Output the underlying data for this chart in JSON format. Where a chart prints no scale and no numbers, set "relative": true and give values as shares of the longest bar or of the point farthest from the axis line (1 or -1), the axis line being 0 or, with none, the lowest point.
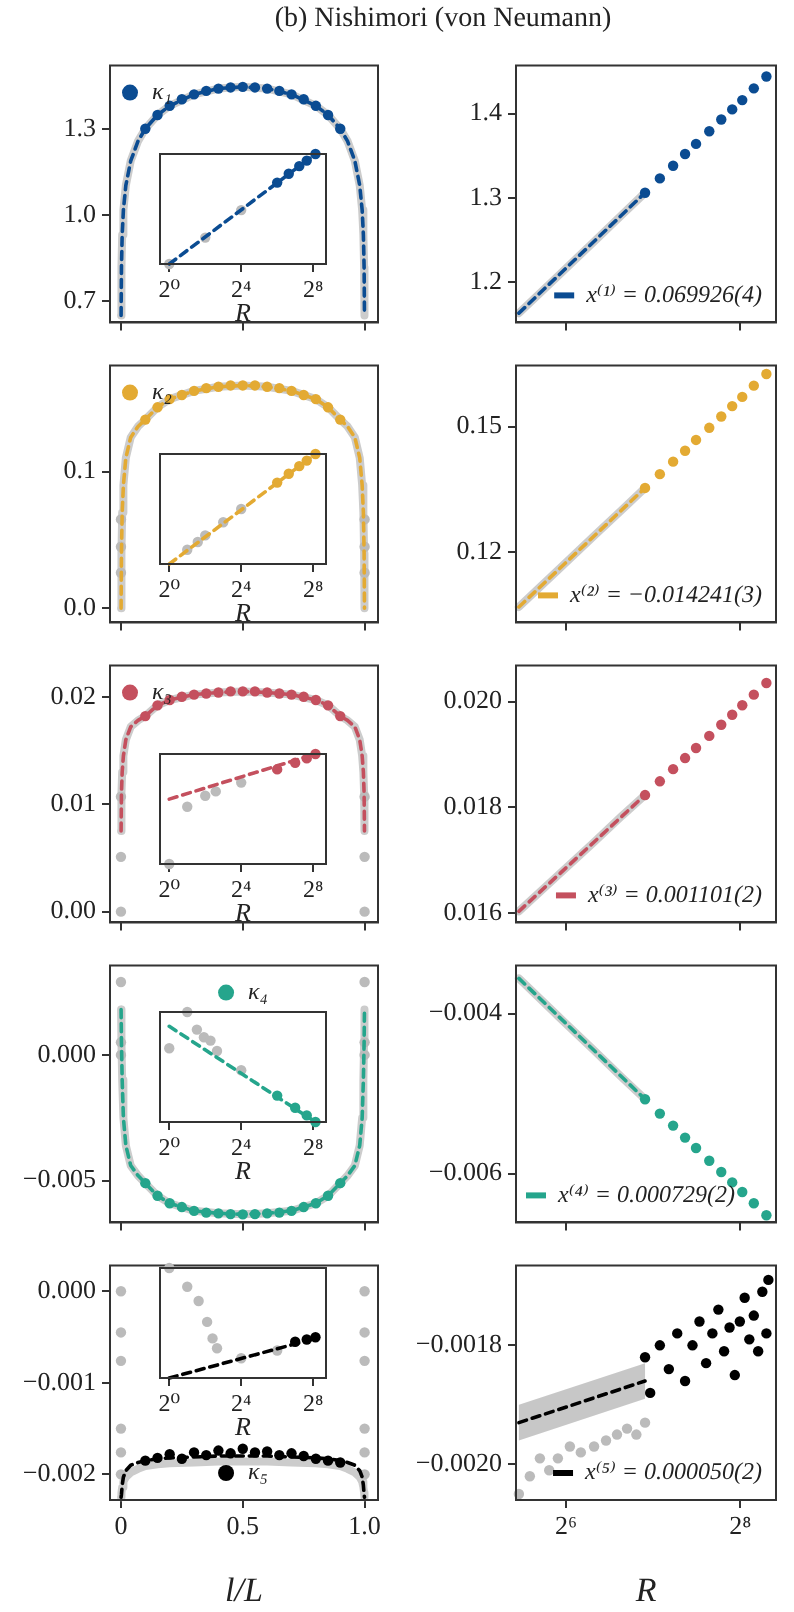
{
  "chart_data": [
    {
      "type": "scatter",
      "title": "(b) Nishimori (von Neumann)",
      "xlim": [
        -0.045,
        1.055
      ],
      "xticks": [
        {
          "value": 0,
          "label": null
        },
        {
          "value": 0.5,
          "label": null
        },
        {
          "value": 1,
          "label": null
        }
      ],
      "ylim": [
        0.626,
        1.52
      ],
      "yticks": [
        {
          "value": 0.7,
          "label": "0.7"
        },
        {
          "value": 1,
          "label": "1.0"
        },
        {
          "value": 1.3,
          "label": "1.3"
        }
      ],
      "tick_labels": "y",
      "legend": "top left",
      "series": [
        {
          "type": "line",
          "color": "#cccccc",
          "line_style": "solid",
          "x": [
            0.0005,
            0.002,
            0.005,
            0.01,
            0.02,
            0.04,
            0.07,
            0.1,
            0.15,
            0.2,
            0.3,
            0.4,
            0.5,
            0.6,
            0.7,
            0.8,
            0.85,
            0.9,
            0.93,
            0.96,
            0.98,
            0.99,
            0.995,
            0.998,
            0.9995
          ],
          "values": [
            0.65,
            0.817,
            0.931,
            1.017,
            1.103,
            1.188,
            1.257,
            1.3,
            1.348,
            1.38,
            1.42,
            1.44,
            1.446,
            1.44,
            1.42,
            1.38,
            1.348,
            1.3,
            1.257,
            1.188,
            1.103,
            1.017,
            0.931,
            0.817,
            0.65
          ]
        },
        {
          "type": "line",
          "color": "#0b4c92",
          "line_style": "dashed",
          "x": [
            0.0005,
            0.002,
            0.005,
            0.01,
            0.02,
            0.04,
            0.07,
            0.1,
            0.15,
            0.2,
            0.3,
            0.4,
            0.5,
            0.6,
            0.7,
            0.8,
            0.85,
            0.9,
            0.93,
            0.96,
            0.98,
            0.99,
            0.995,
            0.998,
            0.9995
          ],
          "values": [
            0.65,
            0.817,
            0.931,
            1.017,
            1.103,
            1.188,
            1.257,
            1.3,
            1.348,
            1.38,
            1.42,
            1.44,
            1.446,
            1.44,
            1.42,
            1.38,
            1.348,
            1.3,
            1.257,
            1.188,
            1.103,
            1.017,
            0.931,
            0.817,
            0.65
          ]
        },
        {
          "type": "scatter",
          "marker": "circle",
          "name": "κ₁",
          "color": "#0b4c92",
          "x": [
            0.1,
            0.15,
            0.2,
            0.25,
            0.3,
            0.35,
            0.4,
            0.45,
            0.5,
            0.55,
            0.6,
            0.65,
            0.7,
            0.75,
            0.8,
            0.85,
            0.9
          ],
          "values": [
            1.3,
            1.348,
            1.38,
            1.403,
            1.42,
            1.432,
            1.44,
            1.444,
            1.446,
            1.444,
            1.44,
            1.432,
            1.42,
            1.403,
            1.38,
            1.348,
            1.3
          ]
        }
      ]
    },
    {
      "type": "scatter",
      "relative": true,
      "log": "x",
      "xlabel": "R",
      "xlim": [
        0.72,
        420
      ],
      "xticks": [
        {
          "value": 1,
          "label": "2⁰"
        },
        {
          "value": 16,
          "label": "2⁴"
        },
        {
          "value": 256,
          "label": "2⁸"
        }
      ],
      "series": [
        {
          "type": "scatter",
          "marker": "circle",
          "color": "#bbbbbb",
          "x": [
            1,
            4,
            16
          ],
          "values": [
            0,
            0.24,
            0.49
          ]
        },
        {
          "type": "line",
          "color": "#0b4c92",
          "line_style": "dashed",
          "x": [
            1,
            280
          ],
          "values": [
            0,
            1
          ]
        },
        {
          "type": "scatter",
          "marker": "circle",
          "color": "#0b4c92",
          "x": [
            64,
            100,
            150,
            200,
            280
          ],
          "values": [
            0.74,
            0.82,
            0.89,
            0.94,
            1
          ]
        }
      ]
    },
    {
      "type": "scatter",
      "log": "x",
      "xlim": [
        43,
        340
      ],
      "xticks": [
        {
          "value": 64,
          "label": null
        },
        {
          "value": 256,
          "label": null
        }
      ],
      "ylim": [
        1.152,
        1.457
      ],
      "yticks": [
        {
          "value": 1.2,
          "label": "1.2"
        },
        {
          "value": 1.3,
          "label": "1.3"
        },
        {
          "value": 1.4,
          "label": "1.4"
        }
      ],
      "tick_labels": "y",
      "legend": "bottom right",
      "series": [
        {
          "type": "line",
          "color": "#cccccc",
          "line_style": "solid",
          "x": [
            44,
            60,
            80,
            100,
            120
          ],
          "values": [
            1.163,
            1.207,
            1.248,
            1.28,
            1.306
          ]
        },
        {
          "type": "line",
          "name": "x⁽¹⁾ = 0.069926(4)",
          "color": "#0b4c92",
          "line_style": "dashed",
          "x": [
            44,
            120
          ],
          "values": [
            1.163,
            1.306
          ]
        },
        {
          "type": "scatter",
          "marker": "circle",
          "color": "#0b4c92",
          "x": [
            120,
            135,
            150,
            165,
            180,
            200,
            220,
            240,
            260,
            285,
            315
          ],
          "values": [
            1.306,
            1.323,
            1.338,
            1.352,
            1.364,
            1.379,
            1.393,
            1.405,
            1.416,
            1.43,
            1.444
          ]
        }
      ]
    },
    {
      "type": "scatter",
      "xlim": [
        -0.045,
        1.055
      ],
      "xticks": [
        {
          "value": 0,
          "label": null
        },
        {
          "value": 0.5,
          "label": null
        },
        {
          "value": 1,
          "label": null
        }
      ],
      "ylim": [
        -0.0103,
        0.1775
      ],
      "yticks": [
        {
          "value": 0,
          "label": "0.0"
        },
        {
          "value": 0.1,
          "label": "0.1"
        }
      ],
      "tick_labels": "y",
      "legend": "top left",
      "series": [
        {
          "type": "line",
          "color": "#cccccc",
          "line_style": "solid",
          "x": [
            0.0005,
            0.002,
            0.005,
            0.01,
            0.02,
            0.04,
            0.07,
            0.1,
            0.15,
            0.2,
            0.3,
            0.4,
            0.5,
            0.6,
            0.7,
            0.8,
            0.85,
            0.9,
            0.93,
            0.96,
            0.98,
            0.99,
            0.995,
            0.998,
            0.9995
          ],
          "values": [
            0,
            0.04,
            0.07,
            0.09,
            0.11,
            0.125,
            0.133,
            0.138,
            0.147,
            0.153,
            0.159,
            0.162,
            0.163,
            0.162,
            0.159,
            0.153,
            0.147,
            0.138,
            0.133,
            0.125,
            0.11,
            0.09,
            0.07,
            0.04,
            0
          ]
        },
        {
          "type": "scatter",
          "marker": "circle",
          "color": "#bbbbbb",
          "x": [
            0,
            0,
            0,
            1,
            1,
            1
          ],
          "values": [
            0.065,
            0.045,
            0.026,
            0.065,
            0.045,
            0.026
          ]
        },
        {
          "type": "line",
          "color": "#e3aa33",
          "line_style": "dashed",
          "x": [
            0.0005,
            0.002,
            0.005,
            0.01,
            0.02,
            0.04,
            0.07,
            0.1,
            0.15,
            0.2,
            0.3,
            0.4,
            0.5,
            0.6,
            0.7,
            0.8,
            0.85,
            0.9,
            0.93,
            0.96,
            0.98,
            0.99,
            0.995,
            0.998,
            0.9995
          ],
          "values": [
            0,
            0.04,
            0.07,
            0.09,
            0.11,
            0.125,
            0.133,
            0.138,
            0.147,
            0.153,
            0.159,
            0.162,
            0.163,
            0.162,
            0.159,
            0.153,
            0.147,
            0.138,
            0.133,
            0.125,
            0.11,
            0.09,
            0.07,
            0.04,
            0
          ]
        },
        {
          "type": "scatter",
          "marker": "circle",
          "name": "κ₂",
          "color": "#e3aa33",
          "x": [
            0.1,
            0.15,
            0.2,
            0.25,
            0.3,
            0.35,
            0.4,
            0.45,
            0.5,
            0.55,
            0.6,
            0.65,
            0.7,
            0.75,
            0.8,
            0.85,
            0.9
          ],
          "values": [
            0.138,
            0.147,
            0.153,
            0.156,
            0.159,
            0.161,
            0.162,
            0.163,
            0.163,
            0.163,
            0.162,
            0.161,
            0.159,
            0.156,
            0.153,
            0.147,
            0.138
          ]
        }
      ]
    },
    {
      "type": "scatter",
      "relative": true,
      "log": "x",
      "xlabel": "R",
      "xlim": [
        0.72,
        420
      ],
      "xticks": [
        {
          "value": 1,
          "label": "2⁰"
        },
        {
          "value": 16,
          "label": "2⁴"
        },
        {
          "value": 256,
          "label": "2⁸"
        }
      ],
      "series": [
        {
          "type": "scatter",
          "marker": "circle",
          "color": "#bbbbbb",
          "x": [
            2,
            3,
            4,
            8,
            16
          ],
          "values": [
            0.13,
            0.2,
            0.26,
            0.38,
            0.5
          ]
        },
        {
          "type": "line",
          "color": "#e3aa33",
          "line_style": "dashed",
          "x": [
            1,
            280
          ],
          "values": [
            0,
            1
          ]
        },
        {
          "type": "scatter",
          "marker": "circle",
          "color": "#e3aa33",
          "x": [
            64,
            100,
            150,
            200,
            280
          ],
          "values": [
            0.74,
            0.82,
            0.89,
            0.94,
            1
          ]
        }
      ]
    },
    {
      "type": "scatter",
      "log": "x",
      "xlim": [
        43,
        340
      ],
      "xticks": [
        {
          "value": 64,
          "label": null
        },
        {
          "value": 256,
          "label": null
        }
      ],
      "ylim": [
        0.1031,
        0.1646
      ],
      "yticks": [
        {
          "value": 0.12,
          "label": "0.12"
        },
        {
          "value": 0.15,
          "label": "0.15"
        }
      ],
      "tick_labels": "y",
      "legend": "bottom right",
      "series": [
        {
          "type": "line",
          "color": "#cccccc",
          "line_style": "solid",
          "x": [
            44,
            60,
            80,
            100,
            120
          ],
          "values": [
            0.1068,
            0.1156,
            0.1238,
            0.1301,
            0.1353
          ]
        },
        {
          "type": "line",
          "name": "x⁽²⁾ = −0.014241(3)",
          "color": "#e3aa33",
          "line_style": "dashed",
          "x": [
            44,
            120
          ],
          "values": [
            0.1068,
            0.1353
          ]
        },
        {
          "type": "scatter",
          "marker": "circle",
          "color": "#e3aa33",
          "x": [
            120,
            135,
            150,
            165,
            180,
            200,
            220,
            240,
            260,
            285,
            315
          ],
          "values": [
            0.1353,
            0.1386,
            0.1416,
            0.1442,
            0.1468,
            0.1497,
            0.1524,
            0.1549,
            0.1571,
            0.1598,
            0.1626
          ]
        }
      ]
    },
    {
      "type": "scatter",
      "xlim": [
        -0.045,
        1.055
      ],
      "xticks": [
        {
          "value": 0,
          "label": null
        },
        {
          "value": 0.5,
          "label": null
        },
        {
          "value": 1,
          "label": null
        }
      ],
      "ylim": [
        -0.001,
        0.0229
      ],
      "yticks": [
        {
          "value": 0,
          "label": "0.00"
        },
        {
          "value": 0.01,
          "label": "0.01"
        },
        {
          "value": 0.02,
          "label": "0.02"
        }
      ],
      "tick_labels": "y",
      "legend": "top left",
      "series": [
        {
          "type": "line",
          "color": "#cccccc",
          "line_style": "solid",
          "x": [
            0.0005,
            0.002,
            0.005,
            0.01,
            0.02,
            0.04,
            0.07,
            0.1,
            0.15,
            0.2,
            0.3,
            0.4,
            0.5,
            0.6,
            0.7,
            0.8,
            0.85,
            0.9,
            0.93,
            0.96,
            0.98,
            0.99,
            0.995,
            0.998,
            0.9995
          ],
          "values": [
            0.0075,
            0.011,
            0.013,
            0.0145,
            0.016,
            0.0172,
            0.0178,
            0.0182,
            0.0192,
            0.0197,
            0.0202,
            0.0204,
            0.0205,
            0.0204,
            0.0202,
            0.0197,
            0.0192,
            0.0182,
            0.0178,
            0.0172,
            0.016,
            0.0145,
            0.013,
            0.011,
            0.0075
          ]
        },
        {
          "type": "scatter",
          "marker": "circle",
          "color": "#bbbbbb",
          "x": [
            0,
            0,
            0,
            1,
            1,
            1
          ],
          "values": [
            0.0107,
            0.0051,
            0,
            0.0107,
            0.0051,
            0
          ]
        },
        {
          "type": "line",
          "color": "#c4505e",
          "line_style": "dashed",
          "x": [
            0.0005,
            0.002,
            0.005,
            0.01,
            0.02,
            0.04,
            0.07,
            0.1,
            0.15,
            0.2,
            0.3,
            0.4,
            0.5,
            0.6,
            0.7,
            0.8,
            0.85,
            0.9,
            0.93,
            0.96,
            0.98,
            0.99,
            0.995,
            0.998,
            0.9995
          ],
          "values": [
            0.0075,
            0.011,
            0.013,
            0.0145,
            0.016,
            0.0172,
            0.0178,
            0.0182,
            0.0192,
            0.0197,
            0.0202,
            0.0204,
            0.0205,
            0.0204,
            0.0202,
            0.0197,
            0.0192,
            0.0182,
            0.0178,
            0.0172,
            0.016,
            0.0145,
            0.013,
            0.011,
            0.0075
          ]
        },
        {
          "type": "scatter",
          "marker": "circle",
          "name": "κ₃",
          "color": "#c4505e",
          "x": [
            0.1,
            0.15,
            0.2,
            0.25,
            0.3,
            0.35,
            0.4,
            0.45,
            0.5,
            0.55,
            0.6,
            0.65,
            0.7,
            0.75,
            0.8,
            0.85,
            0.9
          ],
          "values": [
            0.0182,
            0.0192,
            0.0197,
            0.02,
            0.0202,
            0.0203,
            0.0204,
            0.0205,
            0.0205,
            0.0205,
            0.0204,
            0.0203,
            0.0202,
            0.02,
            0.0197,
            0.0192,
            0.0182
          ]
        }
      ]
    },
    {
      "type": "scatter",
      "relative": true,
      "log": "x",
      "xlabel": "R",
      "xlim": [
        0.72,
        420
      ],
      "xticks": [
        {
          "value": 1,
          "label": "2⁰"
        },
        {
          "value": 16,
          "label": "2⁴"
        },
        {
          "value": 256,
          "label": "2⁸"
        }
      ],
      "series": [
        {
          "type": "scatter",
          "marker": "circle",
          "color": "#bbbbbb",
          "x": [
            1,
            2,
            4,
            6,
            16
          ],
          "values": [
            0,
            0.52,
            0.62,
            0.66,
            0.74
          ]
        },
        {
          "type": "line",
          "color": "#c4505e",
          "line_style": "dashed",
          "x": [
            1,
            280
          ],
          "values": [
            0.59,
            1
          ]
        },
        {
          "type": "scatter",
          "marker": "circle",
          "color": "#c4505e",
          "x": [
            64,
            128,
            200,
            280
          ],
          "values": [
            0.86,
            0.92,
            0.96,
            1
          ]
        }
      ]
    },
    {
      "type": "scatter",
      "log": "x",
      "xlim": [
        43,
        340
      ],
      "xticks": [
        {
          "value": 64,
          "label": null
        },
        {
          "value": 256,
          "label": null
        }
      ],
      "ylim": [
        0.01582,
        0.02068
      ],
      "yticks": [
        {
          "value": 0.016,
          "label": "0.016"
        },
        {
          "value": 0.018,
          "label": "0.018"
        },
        {
          "value": 0.02,
          "label": "0.020"
        }
      ],
      "tick_labels": "y",
      "legend": "bottom right",
      "series": [
        {
          "type": "line",
          "color": "#cccccc",
          "line_style": "solid",
          "x": [
            44,
            60,
            80,
            100,
            120
          ],
          "values": [
            0.01603,
            0.01671,
            0.01734,
            0.01784,
            0.01823
          ]
        },
        {
          "type": "line",
          "name": "x⁽³⁾ = 0.001101(2)",
          "color": "#c4505e",
          "line_style": "dashed",
          "x": [
            44,
            120
          ],
          "values": [
            0.01603,
            0.01823
          ]
        },
        {
          "type": "scatter",
          "marker": "circle",
          "color": "#c4505e",
          "x": [
            120,
            135,
            150,
            165,
            180,
            200,
            220,
            240,
            260,
            285,
            315
          ],
          "values": [
            0.01823,
            0.01849,
            0.01872,
            0.01893,
            0.01912,
            0.01935,
            0.01956,
            0.01975,
            0.01993,
            0.02013,
            0.02035
          ]
        }
      ]
    },
    {
      "type": "scatter",
      "xlim": [
        -0.045,
        1.055
      ],
      "xticks": [
        {
          "value": 0,
          "label": null
        },
        {
          "value": 0.5,
          "label": null
        },
        {
          "value": 1,
          "label": null
        }
      ],
      "ylim": [
        -0.00666,
        0.00355
      ],
      "yticks": [
        {
          "value": -0.005,
          "label": "−0.005"
        },
        {
          "value": 0,
          "label": "0.000"
        }
      ],
      "tick_labels": "y",
      "legend": "top",
      "series": [
        {
          "type": "line",
          "color": "#cccccc",
          "line_style": "solid",
          "x": [
            0.0005,
            0.002,
            0.005,
            0.01,
            0.02,
            0.04,
            0.07,
            0.1,
            0.15,
            0.2,
            0.3,
            0.4,
            0.5,
            0.6,
            0.7,
            0.8,
            0.85,
            0.9,
            0.93,
            0.96,
            0.98,
            0.99,
            0.995,
            0.998,
            0.9995
          ],
          "values": [
            0.0018,
            0.0005,
            -0.001,
            -0.0025,
            -0.0036,
            -0.0044,
            -0.0048,
            -0.0051,
            -0.0056,
            -0.0059,
            -0.0062,
            -0.0063,
            -0.00634,
            -0.0063,
            -0.0062,
            -0.0059,
            -0.0056,
            -0.0051,
            -0.0048,
            -0.0044,
            -0.0036,
            -0.0025,
            -0.001,
            0.0005,
            0.0018
          ]
        },
        {
          "type": "scatter",
          "marker": "circle",
          "color": "#bbbbbb",
          "x": [
            0,
            0,
            0,
            1,
            1,
            1
          ],
          "values": [
            0.0029,
            0.0005,
            0,
            0.0029,
            0.0005,
            0
          ]
        },
        {
          "type": "line",
          "color": "#25a58c",
          "line_style": "dashed",
          "x": [
            0.0005,
            0.002,
            0.005,
            0.01,
            0.02,
            0.04,
            0.07,
            0.1,
            0.15,
            0.2,
            0.3,
            0.4,
            0.5,
            0.6,
            0.7,
            0.8,
            0.85,
            0.9,
            0.93,
            0.96,
            0.98,
            0.99,
            0.995,
            0.998,
            0.9995
          ],
          "values": [
            0.0018,
            0.0005,
            -0.001,
            -0.0025,
            -0.0036,
            -0.0044,
            -0.0048,
            -0.0051,
            -0.0056,
            -0.0059,
            -0.0062,
            -0.0063,
            -0.00634,
            -0.0063,
            -0.0062,
            -0.0059,
            -0.0056,
            -0.0051,
            -0.0048,
            -0.0044,
            -0.0036,
            -0.0025,
            -0.001,
            0.0005,
            0.0018
          ]
        },
        {
          "type": "scatter",
          "marker": "circle",
          "name": "κ₄",
          "color": "#25a58c",
          "x": [
            0.1,
            0.15,
            0.2,
            0.25,
            0.3,
            0.35,
            0.4,
            0.45,
            0.5,
            0.55,
            0.6,
            0.65,
            0.7,
            0.75,
            0.8,
            0.85,
            0.9
          ],
          "values": [
            -0.0051,
            -0.0056,
            -0.0059,
            -0.00605,
            -0.0062,
            -0.00627,
            -0.0063,
            -0.00633,
            -0.00634,
            -0.00633,
            -0.0063,
            -0.00627,
            -0.0062,
            -0.00605,
            -0.0059,
            -0.0056,
            -0.0051
          ]
        }
      ]
    },
    {
      "type": "scatter",
      "relative": true,
      "log": "x",
      "xlabel": "R",
      "xlim": [
        0.72,
        420
      ],
      "xticks": [
        {
          "value": 1,
          "label": "2⁰"
        },
        {
          "value": 16,
          "label": "2⁴"
        },
        {
          "value": 256,
          "label": "2⁸"
        }
      ],
      "series": [
        {
          "type": "scatter",
          "marker": "circle",
          "color": "#bbbbbb",
          "x": [
            1,
            2,
            2.9,
            3.8,
            4.9,
            6.3,
            16
          ],
          "values": [
            0.67,
            1,
            0.84,
            0.77,
            0.74,
            0.645,
            0.47
          ]
        },
        {
          "type": "line",
          "color": "#25a58c",
          "line_style": "dashed",
          "x": [
            1,
            280
          ],
          "values": [
            0.87,
            0
          ]
        },
        {
          "type": "scatter",
          "marker": "circle",
          "color": "#25a58c",
          "x": [
            64,
            128,
            200,
            280
          ],
          "values": [
            0.24,
            0.13,
            0.06,
            0
          ]
        }
      ]
    },
    {
      "type": "scatter",
      "log": "x",
      "xlim": [
        43,
        340
      ],
      "xticks": [
        {
          "value": 64,
          "label": null
        },
        {
          "value": 256,
          "label": null
        }
      ],
      "ylim": [
        -0.00661,
        -0.0034
      ],
      "yticks": [
        {
          "value": -0.006,
          "label": "−0.006"
        },
        {
          "value": -0.004,
          "label": "−0.004"
        }
      ],
      "tick_labels": "y",
      "legend": "bottom left",
      "series": [
        {
          "type": "line",
          "color": "#cccccc",
          "line_style": "solid",
          "x": [
            44,
            60,
            80,
            100,
            120
          ],
          "values": [
            -0.00356,
            -0.00403,
            -0.00446,
            -0.0048,
            -0.00507
          ]
        },
        {
          "type": "line",
          "name": "x⁽⁴⁾ = 0.000729(2)",
          "color": "#25a58c",
          "line_style": "dashed",
          "x": [
            44,
            120
          ],
          "values": [
            -0.00356,
            -0.00507
          ]
        },
        {
          "type": "scatter",
          "marker": "circle",
          "color": "#25a58c",
          "x": [
            120,
            135,
            150,
            165,
            180,
            200,
            220,
            240,
            260,
            285,
            315
          ],
          "values": [
            -0.00507,
            -0.00525,
            -0.0054,
            -0.00555,
            -0.00568,
            -0.00584,
            -0.00598,
            -0.00611,
            -0.00623,
            -0.00637,
            -0.00652
          ]
        }
      ]
    },
    {
      "type": "scatter",
      "xlabel": "l/L",
      "xlim": [
        -0.045,
        1.055
      ],
      "xticks": [
        0,
        0.5,
        {
          "value": 1,
          "label": "1.0"
        }
      ],
      "ylim": [
        -0.00228,
        0.00028
      ],
      "yticks": [
        {
          "value": -0.002,
          "label": "−0.002"
        },
        {
          "value": -0.001,
          "label": "−0.001"
        },
        {
          "value": 0,
          "label": "0.000"
        }
      ],
      "legend": "bottom",
      "series": [
        {
          "type": "line",
          "color": "#cccccc",
          "line_style": "solid",
          "x": [
            0.0005,
            0.002,
            0.005,
            0.01,
            0.02,
            0.04,
            0.07,
            0.1,
            0.15,
            0.2,
            0.3,
            0.4,
            0.5,
            0.6,
            0.7,
            0.8,
            0.85,
            0.9,
            0.93,
            0.96,
            0.98,
            0.99,
            0.995,
            0.998,
            0.9995
          ],
          "values": [
            -0.00225,
            -0.0022,
            -0.00214,
            -0.00208,
            -0.00203,
            -0.00198,
            -0.00194,
            -0.00191,
            -0.00189,
            -0.00188,
            -0.00187,
            -0.00186,
            -0.00186,
            -0.00186,
            -0.00187,
            -0.00188,
            -0.00189,
            -0.00191,
            -0.00194,
            -0.00198,
            -0.00203,
            -0.00208,
            -0.00214,
            -0.0022,
            -0.00225
          ]
        },
        {
          "type": "scatter",
          "marker": "circle",
          "color": "#bbbbbb",
          "x": [
            0,
            0,
            0,
            0,
            0,
            0,
            1,
            1,
            1,
            1,
            1,
            1
          ],
          "values": [
            0,
            -0.00045,
            -0.00076,
            -0.0015,
            -0.00176,
            -0.002,
            0,
            -0.00045,
            -0.00076,
            -0.0015,
            -0.00176,
            -0.002
          ]
        },
        {
          "type": "line",
          "color": "#000000",
          "line_style": "dashed",
          "x": [
            0.0005,
            0.002,
            0.005,
            0.01,
            0.02,
            0.04,
            0.07,
            0.1,
            0.15,
            0.2,
            0.3,
            0.4,
            0.5,
            0.6,
            0.7,
            0.8,
            0.85,
            0.9,
            0.93,
            0.96,
            0.98,
            0.99,
            0.995,
            0.998,
            0.9995
          ],
          "values": [
            -0.00225,
            -0.00222,
            -0.00212,
            -0.00203,
            -0.00196,
            -0.0019,
            -0.00187,
            -0.00185,
            -0.00183,
            -0.00182,
            -0.00181,
            -0.0018,
            -0.0018,
            -0.0018,
            -0.00181,
            -0.00182,
            -0.00183,
            -0.00185,
            -0.00187,
            -0.0019,
            -0.00196,
            -0.00203,
            -0.00212,
            -0.00222,
            -0.00225
          ]
        },
        {
          "type": "scatter",
          "marker": "circle",
          "name": "κ₅",
          "color": "#000000",
          "x": [
            0.1,
            0.15,
            0.2,
            0.25,
            0.3,
            0.35,
            0.4,
            0.45,
            0.5,
            0.55,
            0.6,
            0.65,
            0.7,
            0.75,
            0.8,
            0.85,
            0.9
          ],
          "values": [
            -0.00185,
            -0.00182,
            -0.00178,
            -0.00183,
            -0.00176,
            -0.00179,
            -0.00174,
            -0.00177,
            -0.00172,
            -0.00176,
            -0.00175,
            -0.00179,
            -0.00177,
            -0.0018,
            -0.00183,
            -0.00185,
            -0.00187
          ]
        }
      ]
    },
    {
      "type": "scatter",
      "relative": true,
      "log": "x",
      "xlabel": "R",
      "xlim": [
        0.72,
        420
      ],
      "xticks": [
        {
          "value": 1,
          "label": "2⁰"
        },
        {
          "value": 16,
          "label": "2⁴"
        },
        {
          "value": 256,
          "label": "2⁸"
        }
      ],
      "series": [
        {
          "type": "scatter",
          "marker": "circle",
          "color": "#bbbbbb",
          "x": [
            1,
            2,
            3.1,
            4.3,
            5.3,
            6.3,
            16,
            64
          ],
          "values": [
            1,
            0.83,
            0.7,
            0.51,
            0.36,
            0.27,
            0.18,
            0.25
          ]
        },
        {
          "type": "line",
          "color": "#000000",
          "line_style": "dashed",
          "x": [
            1,
            280
          ],
          "values": [
            0,
            0.36
          ]
        },
        {
          "type": "scatter",
          "marker": "circle",
          "color": "#000000",
          "x": [
            128,
            200,
            280
          ],
          "values": [
            0.33,
            0.35,
            0.37
          ]
        }
      ]
    },
    {
      "type": "scatter",
      "log": "x",
      "xlabel": "R",
      "xlim": [
        43,
        340
      ],
      "xticks": [
        {
          "value": 64,
          "label": "2⁶"
        },
        {
          "value": 256,
          "label": "2⁸"
        }
      ],
      "ylim": [
        -0.00206,
        -0.001666
      ],
      "yticks": [
        {
          "value": -0.002,
          "label": "−0.0020"
        },
        {
          "value": -0.0018,
          "label": "−0.0018"
        }
      ],
      "legend": "bottom right",
      "series": [
        {
          "type": "scatter",
          "marker": "circle",
          "color": "#bbbbbb",
          "x": [
            44,
            48,
            52,
            56,
            60,
            66,
            72,
            80,
            88,
            96,
            104,
            112,
            120
          ],
          "values": [
            -0.00205,
            -0.00202,
            -0.00199,
            -0.00201,
            -0.00199,
            -0.00197,
            -0.00198,
            -0.00197,
            -0.00196,
            -0.00195,
            -0.00194,
            -0.00195,
            -0.00193
          ]
        },
        {
          "type": "line",
          "name": "x⁽⁵⁾ = 0.000050(2)",
          "color": "#000000",
          "line_style": "dashed",
          "x": [
            44,
            120
          ],
          "values": [
            -0.00193,
            -0.00186
          ],
          "lower": [
            -0.00196,
            -0.00189
          ],
          "upper": [
            -0.0019,
            -0.00183
          ]
        },
        {
          "type": "scatter",
          "marker": "circle",
          "color": "#000000",
          "x": [
            120,
            125,
            135,
            145,
            155,
            165,
            175,
            185,
            195,
            205,
            215,
            225,
            235,
            245,
            255,
            265,
            275,
            285,
            295,
            305,
            315,
            320
          ],
          "values": [
            -0.00182,
            -0.00188,
            -0.0018,
            -0.00184,
            -0.00178,
            -0.00186,
            -0.0018,
            -0.00176,
            -0.00183,
            -0.00178,
            -0.00174,
            -0.00181,
            -0.00177,
            -0.00185,
            -0.00176,
            -0.00172,
            -0.00179,
            -0.00175,
            -0.00181,
            -0.00171,
            -0.00178,
            -0.00169
          ]
        }
      ]
    }
  ]
}
